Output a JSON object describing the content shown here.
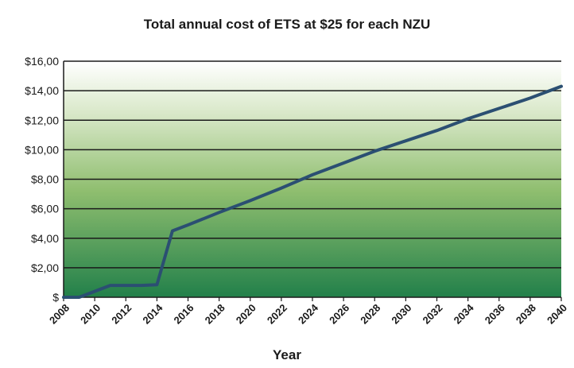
{
  "chart_data": {
    "type": "line",
    "title": "Total annual cost of ETS at $25 for each NZU",
    "xlabel": "Year",
    "ylabel": "",
    "x_ticks": [
      "2008",
      "2010",
      "2012",
      "2014",
      "2016",
      "2018",
      "2020",
      "2022",
      "2024",
      "2026",
      "2028",
      "2030",
      "2032",
      "2034",
      "2036",
      "2038",
      "2040"
    ],
    "y_ticks": [
      "$",
      "$2,00",
      "$4,00",
      "$6,00",
      "$8,00",
      "$10,00",
      "$12,00",
      "$14,00",
      "$16,00"
    ],
    "xlim": [
      2008,
      2040
    ],
    "ylim": [
      0,
      16
    ],
    "grid": true,
    "colors": {
      "line": "#2b4f72",
      "bg_top": "#ffffff",
      "bg_bottom": "#22804a"
    },
    "series": [
      {
        "x": [
          2008,
          2009,
          2011,
          2012,
          2013,
          2014,
          2015,
          2016,
          2018,
          2020,
          2022,
          2024,
          2026,
          2028,
          2030,
          2032,
          2034,
          2036,
          2038,
          2040
        ],
        "y": [
          0,
          0,
          0.8,
          0.8,
          0.8,
          0.85,
          4.5,
          4.9,
          5.75,
          6.55,
          7.4,
          8.3,
          9.1,
          9.9,
          10.6,
          11.3,
          12.1,
          12.8,
          13.5,
          14.3
        ]
      }
    ]
  }
}
